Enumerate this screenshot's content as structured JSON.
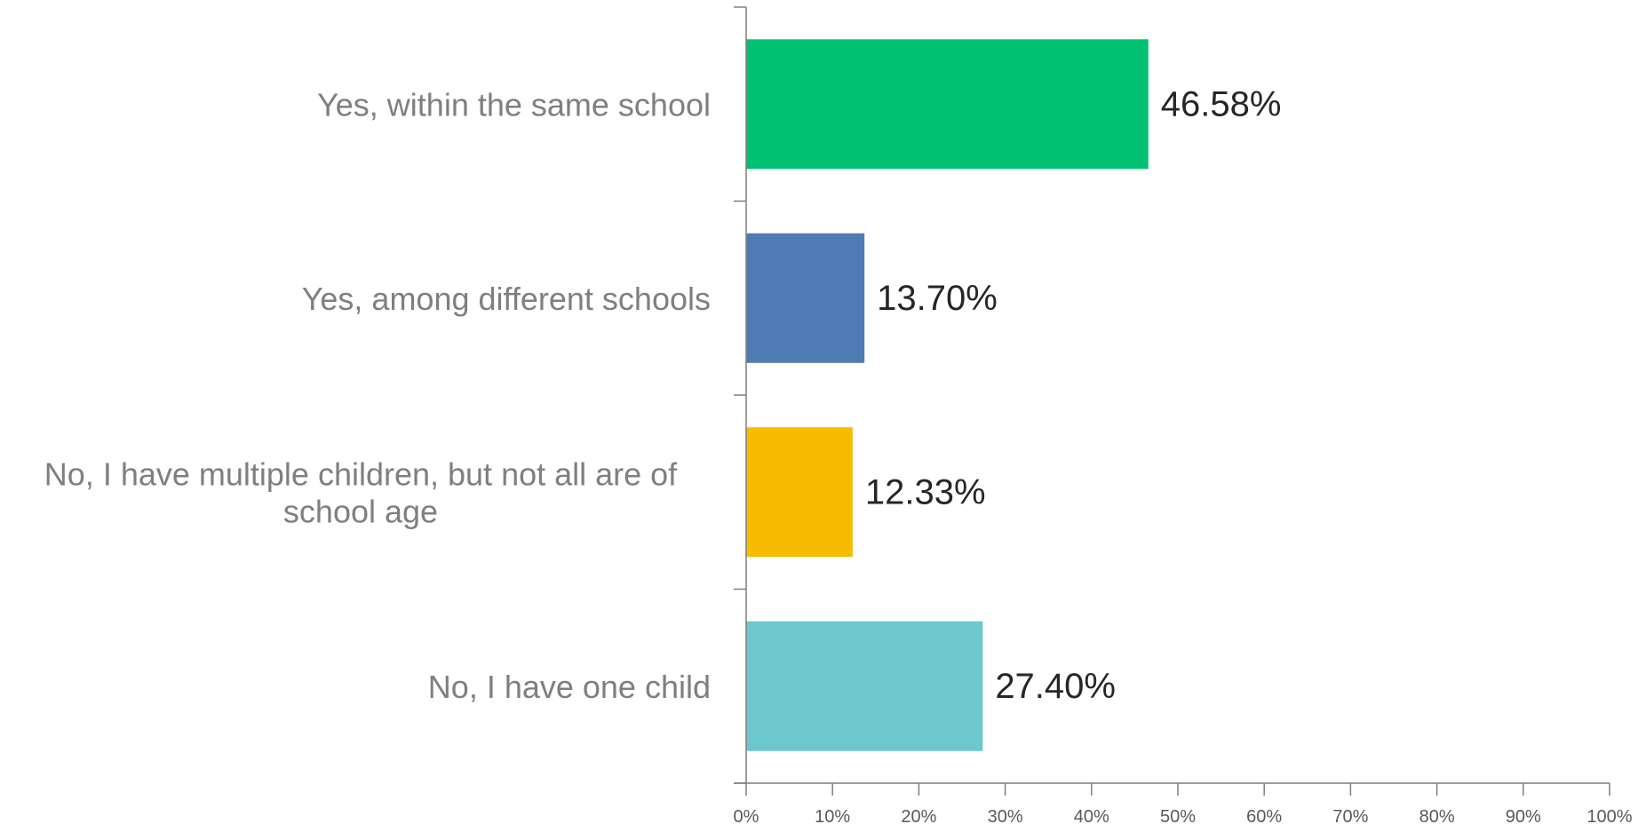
{
  "chart_data": {
    "type": "bar",
    "orientation": "horizontal",
    "categories": [
      "Yes, within the same school",
      "Yes, among different schools",
      "No, I have multiple children, but not all are of school age",
      "No, I have one child"
    ],
    "category_label_lines": [
      [
        "Yes, within the same school"
      ],
      [
        "Yes, among different schools"
      ],
      [
        "No, I have multiple children, but not all are of",
        "school age"
      ],
      [
        "No, I have one child"
      ]
    ],
    "values": [
      46.58,
      13.7,
      12.33,
      27.4
    ],
    "data_labels": [
      "46.58%",
      "13.70%",
      "12.33%",
      "27.40%"
    ],
    "colors": [
      "#00c172",
      "#4f7bb5",
      "#f7bb00",
      "#6cc8cc"
    ],
    "xlim": [
      0,
      100
    ],
    "x_ticks": [
      0,
      10,
      20,
      30,
      40,
      50,
      60,
      70,
      80,
      90,
      100
    ],
    "x_tick_labels": [
      "0%",
      "10%",
      "20%",
      "30%",
      "40%",
      "50%",
      "60%",
      "70%",
      "80%",
      "90%",
      "100%"
    ],
    "title": "",
    "xlabel": "",
    "ylabel": "",
    "grid": false,
    "legend": false
  }
}
